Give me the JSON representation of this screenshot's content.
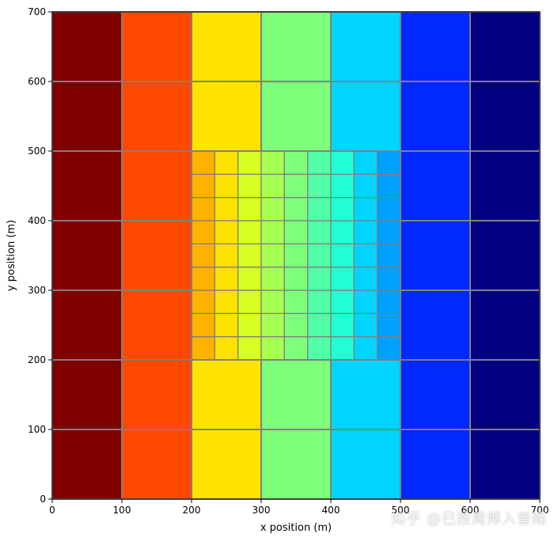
{
  "chart_data": {
    "type": "heatmap",
    "title": "",
    "xlabel": "x position (m)",
    "ylabel": "y position (m)",
    "xlim": [
      0,
      700
    ],
    "ylim": [
      0,
      700
    ],
    "x_ticks": [
      "0",
      "100",
      "200",
      "300",
      "400",
      "500",
      "600",
      "700"
    ],
    "y_ticks": [
      "0",
      "100",
      "200",
      "300",
      "400",
      "500",
      "600",
      "700"
    ],
    "grid_line_color": "#808080",
    "coarse_grid": {
      "cell_size": 100,
      "column_colors": [
        "#800000",
        "#ff4800",
        "#ffe200",
        "#7dff7a",
        "#00d4ff",
        "#0028ff",
        "#000080"
      ]
    },
    "refined_region": {
      "x_range": [
        200,
        500
      ],
      "y_range": [
        200,
        500
      ],
      "columns": 9,
      "rows": 9,
      "column_colors": [
        "#ffb200",
        "#ffe200",
        "#d7ff1f",
        "#a7ff50",
        "#7dff7a",
        "#50ffa7",
        "#23ffd4",
        "#00d4ff",
        "#00a0ff"
      ]
    }
  },
  "watermark": "知乎 @已按周师入普陌"
}
